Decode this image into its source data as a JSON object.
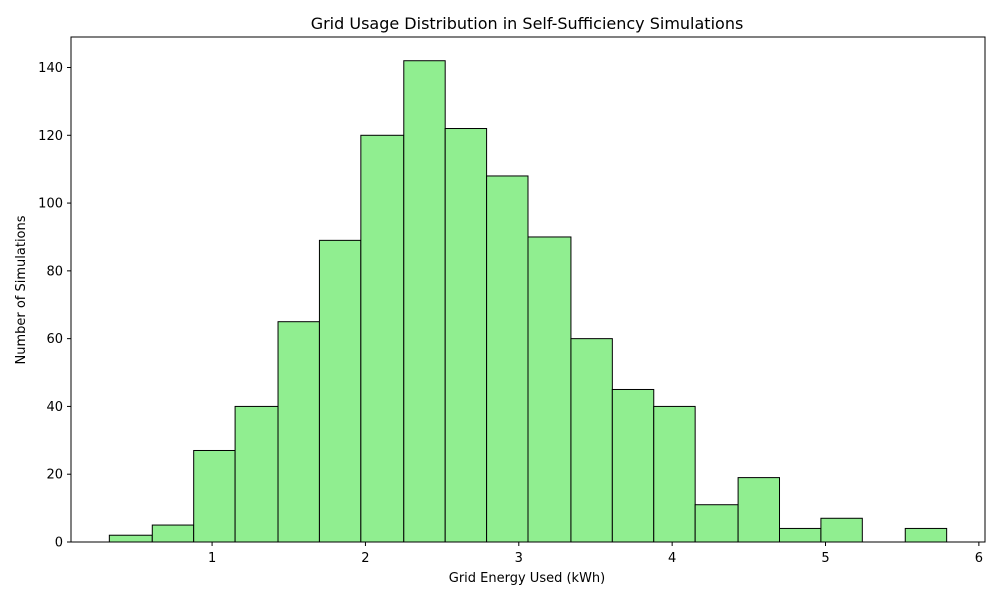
{
  "chart_data": {
    "type": "bar",
    "title": "Grid Usage Distribution in Self-Sufficiency Simulations",
    "xlabel": "Grid Energy Used (kWh)",
    "ylabel": "Number of Simulations",
    "xlim": [
      0.08,
      6.04
    ],
    "ylim": [
      0,
      149
    ],
    "xticks": [
      1,
      2,
      3,
      4,
      5,
      6
    ],
    "yticks": [
      0,
      20,
      40,
      60,
      80,
      100,
      120,
      140
    ],
    "bar_color": "#90ee90",
    "edge_color": "#000000",
    "bins": [
      {
        "x0": 0.33,
        "x1": 0.61,
        "count": 2
      },
      {
        "x0": 0.61,
        "x1": 0.88,
        "count": 5
      },
      {
        "x0": 0.88,
        "x1": 1.15,
        "count": 27
      },
      {
        "x0": 1.15,
        "x1": 1.43,
        "count": 40
      },
      {
        "x0": 1.43,
        "x1": 1.7,
        "count": 65
      },
      {
        "x0": 1.7,
        "x1": 1.97,
        "count": 89
      },
      {
        "x0": 1.97,
        "x1": 2.25,
        "count": 120
      },
      {
        "x0": 2.25,
        "x1": 2.52,
        "count": 142
      },
      {
        "x0": 2.52,
        "x1": 2.79,
        "count": 122
      },
      {
        "x0": 2.79,
        "x1": 3.06,
        "count": 108
      },
      {
        "x0": 3.06,
        "x1": 3.34,
        "count": 90
      },
      {
        "x0": 3.34,
        "x1": 3.61,
        "count": 60
      },
      {
        "x0": 3.61,
        "x1": 3.88,
        "count": 45
      },
      {
        "x0": 3.88,
        "x1": 4.15,
        "count": 40
      },
      {
        "x0": 4.15,
        "x1": 4.43,
        "count": 11
      },
      {
        "x0": 4.43,
        "x1": 4.7,
        "count": 19
      },
      {
        "x0": 4.7,
        "x1": 4.97,
        "count": 4
      },
      {
        "x0": 4.97,
        "x1": 5.24,
        "count": 7
      },
      {
        "x0": 5.24,
        "x1": 5.52,
        "count": 0
      },
      {
        "x0": 5.52,
        "x1": 5.79,
        "count": 4
      }
    ]
  }
}
